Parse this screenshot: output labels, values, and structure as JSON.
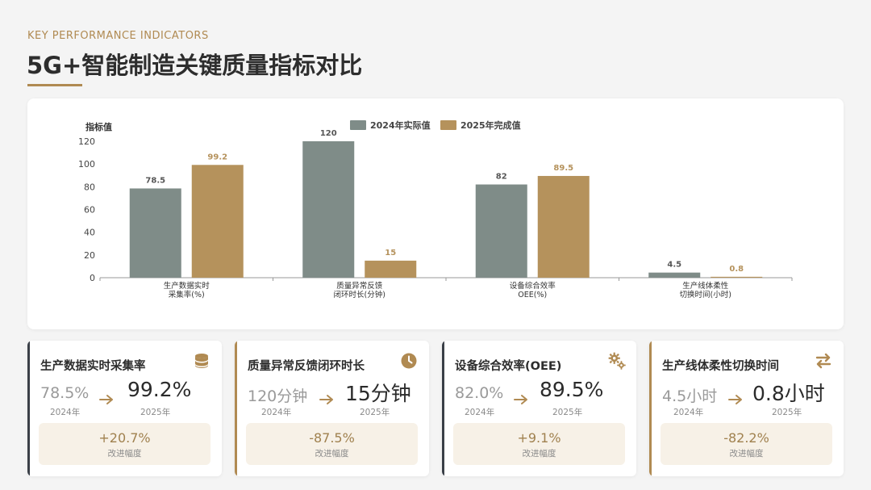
{
  "header": {
    "eyebrow": "KEY PERFORMANCE INDICATORS",
    "title": "5G+智能制造关键质量指标对比"
  },
  "colors": {
    "accent_gold": "#b08a52",
    "series_2024": "#7f8c88",
    "series_2025": "#b5925c",
    "card_dark_accent": "#3a3f47"
  },
  "chart_data": {
    "type": "bar",
    "ylabel": "指标值",
    "ylim": [
      0,
      120
    ],
    "yticks": [
      "0",
      "20",
      "40",
      "60",
      "80",
      "100",
      "120"
    ],
    "legend_position": "top-center",
    "categories": [
      [
        "生产数据实时",
        "采集率(%)"
      ],
      [
        "质量异常反馈",
        "闭环时长(分钟)"
      ],
      [
        "设备综合效率",
        "OEE(%)"
      ],
      [
        "生产线体柔性",
        "切换时间(小时)"
      ]
    ],
    "series": [
      {
        "name": "2024年实际值",
        "color": "#7f8c88",
        "values": [
          78.5,
          120,
          82,
          4.5
        ],
        "labels": [
          "78.5",
          "120",
          "82",
          "4.5"
        ]
      },
      {
        "name": "2025年完成值",
        "color": "#b5925c",
        "values": [
          99.2,
          15,
          89.5,
          0.8
        ],
        "labels": [
          "99.2",
          "15",
          "89.5",
          "0.8"
        ]
      }
    ]
  },
  "kpis": [
    {
      "title": "生产数据实时采集率",
      "icon": "database-icon",
      "accent": "#3a3f47",
      "before": "78.5%",
      "before_year": "2024年",
      "after": "99.2%",
      "after_year": "2025年",
      "delta": "+20.7%",
      "delta_label": "改进幅度"
    },
    {
      "title": "质量异常反馈闭环时长",
      "icon": "clock-icon",
      "accent": "#b08a52",
      "before": "120分钟",
      "before_year": "2024年",
      "after": "15分钟",
      "after_year": "2025年",
      "delta": "-87.5%",
      "delta_label": "改进幅度"
    },
    {
      "title": "设备综合效率(OEE)",
      "icon": "gears-icon",
      "accent": "#3a3f47",
      "before": "82.0%",
      "before_year": "2024年",
      "after": "89.5%",
      "after_year": "2025年",
      "delta": "+9.1%",
      "delta_label": "改进幅度"
    },
    {
      "title": "生产线体柔性切换时间",
      "icon": "exchange-icon",
      "accent": "#b08a52",
      "before": "4.5小时",
      "before_year": "2024年",
      "after": "0.8小时",
      "after_year": "2025年",
      "delta": "-82.2%",
      "delta_label": "改进幅度"
    }
  ]
}
